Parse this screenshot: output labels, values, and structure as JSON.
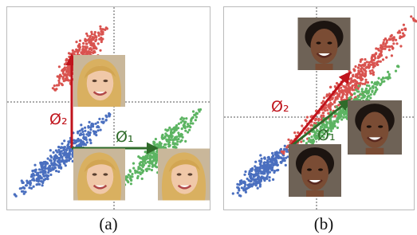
{
  "panel_a": {
    "phi_vertical": "Ø₂",
    "phi_horizontal": "Ø₁",
    "caption": "(a)"
  },
  "panel_b": {
    "phi_upper": "Ø₂",
    "phi_lower": "Ø₁",
    "caption": "(b)"
  }
}
